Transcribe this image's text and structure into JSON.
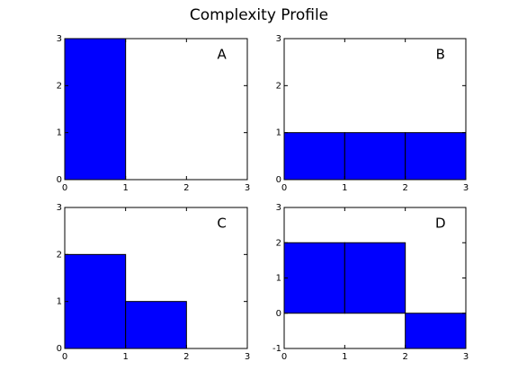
{
  "title": "Complexity Profile",
  "chart_data": [
    {
      "type": "histogram",
      "label": "A",
      "bins": [
        0,
        1,
        2,
        3
      ],
      "values": [
        3,
        0,
        0
      ],
      "color": "#0000ff",
      "xlim": [
        0,
        3
      ],
      "xticks": [
        0,
        1,
        2,
        3
      ],
      "ylim": [
        0,
        3
      ],
      "yticks": [
        0,
        1,
        2,
        3
      ]
    },
    {
      "type": "histogram",
      "label": "B",
      "bins": [
        0,
        1,
        2,
        3
      ],
      "values": [
        1,
        1,
        1
      ],
      "color": "#0000ff",
      "xlim": [
        0,
        3
      ],
      "xticks": [
        0,
        1,
        2,
        3
      ],
      "ylim": [
        0,
        3
      ],
      "yticks": [
        0,
        1,
        2,
        3
      ]
    },
    {
      "type": "histogram",
      "label": "C",
      "bins": [
        0,
        1,
        2,
        3
      ],
      "values": [
        2,
        1,
        0
      ],
      "color": "#0000ff",
      "xlim": [
        0,
        3
      ],
      "xticks": [
        0,
        1,
        2,
        3
      ],
      "ylim": [
        0,
        3
      ],
      "yticks": [
        0,
        1,
        2,
        3
      ]
    },
    {
      "type": "histogram",
      "label": "D",
      "bins": [
        0,
        1,
        2,
        3
      ],
      "values": [
        2,
        2,
        -1
      ],
      "color": "#0000ff",
      "xlim": [
        0,
        3
      ],
      "xticks": [
        0,
        1,
        2,
        3
      ],
      "ylim": [
        -1,
        3
      ],
      "yticks": [
        -1,
        0,
        1,
        2,
        3
      ]
    }
  ]
}
